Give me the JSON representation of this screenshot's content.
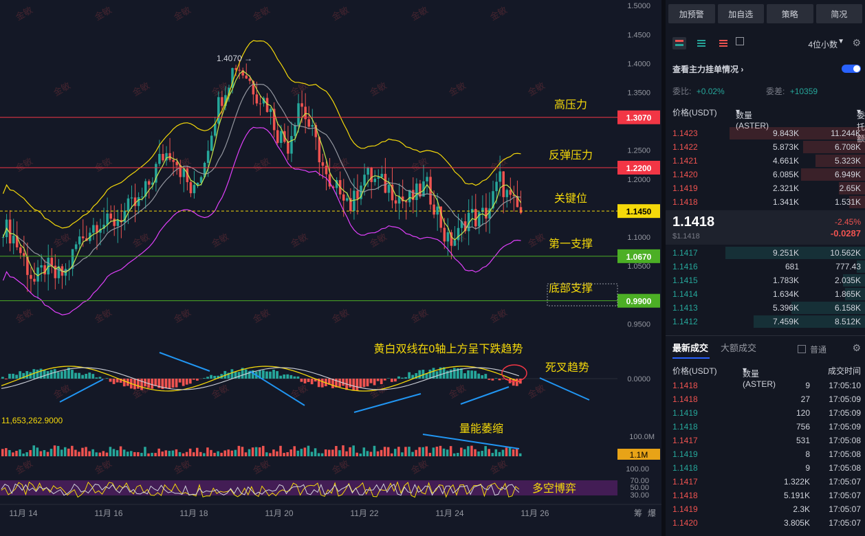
{
  "chart_data": {
    "type": "candlestick",
    "symbol_quote": "USDT",
    "price_axis": {
      "ticks": [
        "1.5000",
        "1.4500",
        "1.4000",
        "1.3500",
        "1.3070",
        "1.2500",
        "1.2200",
        "1.2000",
        "1.1450",
        "1.1000",
        "1.0670",
        "1.0500",
        "0.9900",
        "0.9500"
      ],
      "ylim": [
        0.935,
        1.505
      ]
    },
    "macd_axis": {
      "tick": "0.0000"
    },
    "volume_axis": {
      "ticks": [
        "100.0M",
        "1.1M"
      ],
      "value_label": "11,653,262.9000"
    },
    "rsi_axis": {
      "ticks": [
        "100.00",
        "70.00",
        "50.00",
        "30.00"
      ]
    },
    "x_ticks": [
      "11月 14",
      "11月 16",
      "11月 18",
      "11月 20",
      "11月 22",
      "11月 24",
      "11月 26"
    ],
    "x_right_labels": [
      "筹",
      "爆"
    ],
    "watermark": "金敏",
    "peak_label": "1.4070 →",
    "levels": [
      {
        "name": "高压力",
        "price": 1.307,
        "label": "1.3070",
        "color": "#f23645"
      },
      {
        "name": "反弹压力",
        "price": 1.22,
        "label": "1.2200",
        "color": "#f23645"
      },
      {
        "name": "关键位",
        "price": 1.145,
        "label": "1.1450",
        "color": "#f5d90a"
      },
      {
        "name": "第一支撑",
        "price": 1.067,
        "label": "1.0670",
        "color": "#4caf25"
      },
      {
        "name": "底部支撑",
        "price": 0.99,
        "label": "0.9900",
        "color": "#4caf25"
      }
    ],
    "price_path": [
      {
        "d": "11-13",
        "c": 1.12
      },
      {
        "d": "11-13",
        "c": 1.1
      },
      {
        "d": "11-14",
        "c": 1.06
      },
      {
        "d": "11-14",
        "c": 1.02
      },
      {
        "d": "11-14",
        "c": 1.05
      },
      {
        "d": "11-14",
        "c": 1.03
      },
      {
        "d": "11-15",
        "c": 1.04
      },
      {
        "d": "11-15",
        "c": 1.09
      },
      {
        "d": "11-15",
        "c": 1.11
      },
      {
        "d": "11-16",
        "c": 1.13
      },
      {
        "d": "11-16",
        "c": 1.12
      },
      {
        "d": "11-16",
        "c": 1.135
      },
      {
        "d": "11-17",
        "c": 1.15
      },
      {
        "d": "11-17",
        "c": 1.16
      },
      {
        "d": "11-17",
        "c": 1.2
      },
      {
        "d": "11-17",
        "c": 1.24
      },
      {
        "d": "11-18",
        "c": 1.25
      },
      {
        "d": "11-18",
        "c": 1.21
      },
      {
        "d": "11-18",
        "c": 1.17
      },
      {
        "d": "11-18",
        "c": 1.23
      },
      {
        "d": "11-19",
        "c": 1.31
      },
      {
        "d": "11-19",
        "c": 1.36
      },
      {
        "d": "11-19",
        "c": 1.4
      },
      {
        "d": "11-19",
        "c": 1.38
      },
      {
        "d": "11-19",
        "c": 1.35
      },
      {
        "d": "11-20",
        "c": 1.33
      },
      {
        "d": "11-20",
        "c": 1.28
      },
      {
        "d": "11-20",
        "c": 1.26
      },
      {
        "d": "11-20",
        "c": 1.34
      },
      {
        "d": "11-20",
        "c": 1.29
      },
      {
        "d": "11-21",
        "c": 1.24
      },
      {
        "d": "11-21",
        "c": 1.17
      },
      {
        "d": "11-21",
        "c": 1.19
      },
      {
        "d": "11-21",
        "c": 1.15
      },
      {
        "d": "11-22",
        "c": 1.21
      },
      {
        "d": "11-22",
        "c": 1.2
      },
      {
        "d": "11-22",
        "c": 1.19
      },
      {
        "d": "11-23",
        "c": 1.18
      },
      {
        "d": "11-23",
        "c": 1.16
      },
      {
        "d": "11-23",
        "c": 1.17
      },
      {
        "d": "11-23",
        "c": 1.19
      },
      {
        "d": "11-24",
        "c": 1.15
      },
      {
        "d": "11-24",
        "c": 1.09
      },
      {
        "d": "11-24",
        "c": 1.1
      },
      {
        "d": "11-24",
        "c": 1.14
      },
      {
        "d": "11-25",
        "c": 1.13
      },
      {
        "d": "11-25",
        "c": 1.15
      },
      {
        "d": "11-25",
        "c": 1.2
      },
      {
        "d": "11-25",
        "c": 1.16
      },
      {
        "d": "11-25",
        "c": 1.1418
      }
    ],
    "annotations": {
      "macd_text": "黄白双线在0轴上方呈下跌趋势",
      "death_cross": "死叉趋势",
      "volume_text": "量能萎缩",
      "rsi_text": "多空博弈"
    }
  },
  "panel": {
    "buttons": [
      "加预警",
      "加自选",
      "策略",
      "简况"
    ],
    "precision": "4位小数",
    "main_orders": "查看主力挂单情况",
    "ratio_label": "委比:",
    "ratio_value": "+0.02%",
    "diff_label": "委差:",
    "diff_value": "+10359",
    "book_headers": [
      "价格(USDT)",
      "数量 (ASTER)",
      "委托额"
    ],
    "asks": [
      {
        "p": "1.1423",
        "q": "9.843K",
        "t": "11.244K",
        "w": 0.68
      },
      {
        "p": "1.1422",
        "q": "5.873K",
        "t": "6.708K",
        "w": 0.31
      },
      {
        "p": "1.1421",
        "q": "4.661K",
        "t": "5.323K",
        "w": 0.25
      },
      {
        "p": "1.1420",
        "q": "6.085K",
        "t": "6.949K",
        "w": 0.32
      },
      {
        "p": "1.1419",
        "q": "2.321K",
        "t": "2.65K",
        "w": 0.13
      },
      {
        "p": "1.1418",
        "q": "1.341K",
        "t": "1.531K",
        "w": 0.08
      }
    ],
    "last_price": "1.1418",
    "last_price_usd": "$1.1418",
    "change_pct": "-2.45%",
    "change_abs": "-0.0287",
    "bids": [
      {
        "p": "1.1417",
        "q": "9.251K",
        "t": "10.562K",
        "w": 0.7
      },
      {
        "p": "1.1416",
        "q": "681",
        "t": "777.43",
        "w": 0.04
      },
      {
        "p": "1.1415",
        "q": "1.783K",
        "t": "2.035K",
        "w": 0.11
      },
      {
        "p": "1.1414",
        "q": "1.634K",
        "t": "1.865K",
        "w": 0.1
      },
      {
        "p": "1.1413",
        "q": "5.396K",
        "t": "6.158K",
        "w": 0.37
      },
      {
        "p": "1.1412",
        "q": "7.459K",
        "t": "8.512K",
        "w": 0.56
      }
    ],
    "trade_tabs": [
      "最新成交",
      "大额成交"
    ],
    "normal_label": "普通",
    "trade_headers": [
      "价格(USDT)",
      "数量(ASTER)",
      "成交时间"
    ],
    "trades": [
      {
        "p": "1.1418",
        "q": "9",
        "t": "17:05:10",
        "side": "sell"
      },
      {
        "p": "1.1418",
        "q": "27",
        "t": "17:05:09",
        "side": "sell"
      },
      {
        "p": "1.1419",
        "q": "120",
        "t": "17:05:09",
        "side": "buy"
      },
      {
        "p": "1.1418",
        "q": "756",
        "t": "17:05:09",
        "side": "buy"
      },
      {
        "p": "1.1417",
        "q": "531",
        "t": "17:05:08",
        "side": "sell"
      },
      {
        "p": "1.1419",
        "q": "8",
        "t": "17:05:08",
        "side": "buy"
      },
      {
        "p": "1.1418",
        "q": "9",
        "t": "17:05:08",
        "side": "buy"
      },
      {
        "p": "1.1417",
        "q": "1.322K",
        "t": "17:05:07",
        "side": "sell"
      },
      {
        "p": "1.1418",
        "q": "5.191K",
        "t": "17:05:07",
        "side": "sell"
      },
      {
        "p": "1.1419",
        "q": "2.3K",
        "t": "17:05:07",
        "side": "sell"
      },
      {
        "p": "1.1420",
        "q": "3.805K",
        "t": "17:05:07",
        "side": "sell"
      }
    ]
  }
}
